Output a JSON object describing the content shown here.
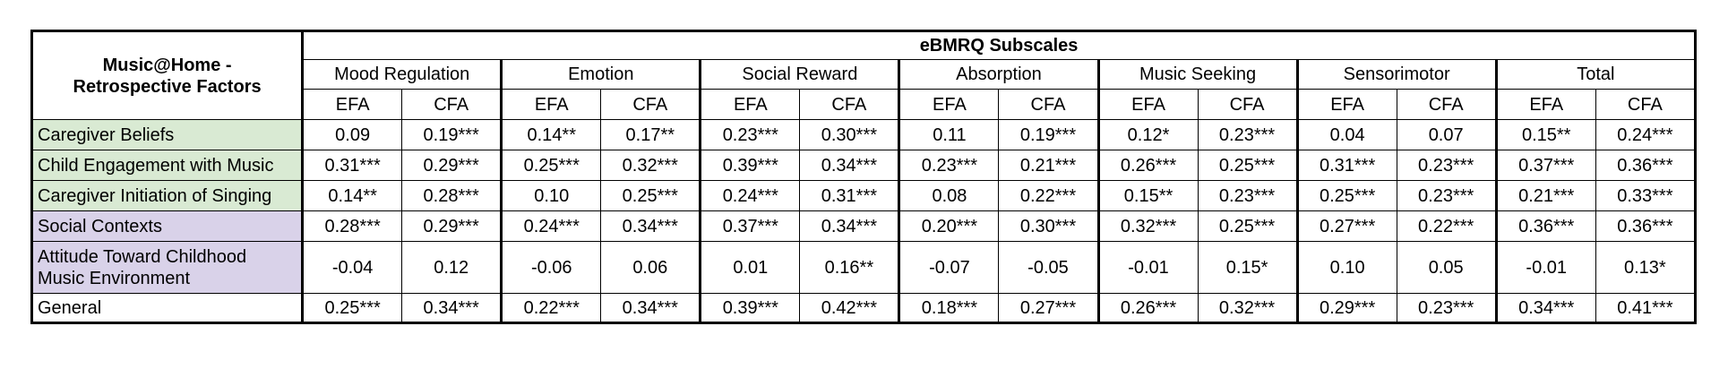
{
  "table": {
    "corner_label_line1": "Music@Home -",
    "corner_label_line2": "Retrospective Factors",
    "super_header": "eBMRQ Subscales",
    "subscales": [
      "Mood Regulation",
      "Emotion",
      "Social Reward",
      "Absorption",
      "Music Seeking",
      "Sensorimotor",
      "Total"
    ],
    "methods": [
      "EFA",
      "CFA"
    ],
    "rows": [
      {
        "label": "Caregiver Beliefs",
        "color": "#d9ead3",
        "values": [
          "0.09",
          "0.19***",
          "0.14**",
          "0.17**",
          "0.23***",
          "0.30***",
          "0.11",
          "0.19***",
          "0.12*",
          "0.23***",
          "0.04",
          "0.07",
          "0.15**",
          "0.24***"
        ]
      },
      {
        "label": "Child Engagement with Music",
        "color": "#d9ead3",
        "values": [
          "0.31***",
          "0.29***",
          "0.25***",
          "0.32***",
          "0.39***",
          "0.34***",
          "0.23***",
          "0.21***",
          "0.26***",
          "0.25***",
          "0.31***",
          "0.23***",
          "0.37***",
          "0.36***"
        ]
      },
      {
        "label": "Caregiver Initiation of Singing",
        "color": "#d9ead3",
        "values": [
          "0.14**",
          "0.28***",
          "0.10",
          "0.25***",
          "0.24***",
          "0.31***",
          "0.08",
          "0.22***",
          "0.15**",
          "0.23***",
          "0.25***",
          "0.23***",
          "0.21***",
          "0.33***"
        ]
      },
      {
        "label": "Social Contexts",
        "color": "#d9d2e9",
        "values": [
          "0.28***",
          "0.29***",
          "0.24***",
          "0.34***",
          "0.37***",
          "0.34***",
          "0.20***",
          "0.30***",
          "0.32***",
          "0.25***",
          "0.27***",
          "0.22***",
          "0.36***",
          "0.36***"
        ]
      },
      {
        "label_line1": "Attitude Toward Childhood",
        "label_line2": "Music Environment",
        "color": "#d9d2e9",
        "values": [
          "-0.04",
          "0.12",
          "-0.06",
          "0.06",
          "0.01",
          "0.16**",
          "-0.07",
          "-0.05",
          "-0.01",
          "0.15*",
          "0.10",
          "0.05",
          "-0.01",
          "0.13*"
        ]
      },
      {
        "label": "General",
        "color": "#ffffff",
        "values": [
          "0.25***",
          "0.34***",
          "0.22***",
          "0.34***",
          "0.39***",
          "0.42***",
          "0.18***",
          "0.27***",
          "0.26***",
          "0.32***",
          "0.29***",
          "0.23***",
          "0.34***",
          "0.41***"
        ]
      }
    ]
  }
}
